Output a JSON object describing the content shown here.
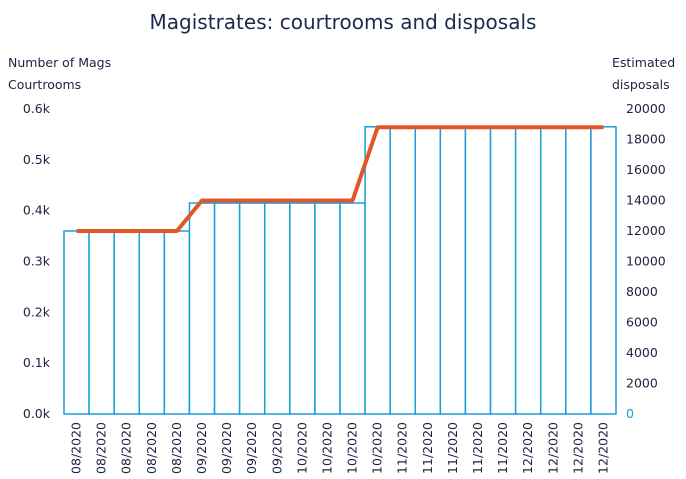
{
  "chart_data": {
    "type": "bar_line",
    "title": "Magistrates: courtrooms and disposals",
    "y_label": [
      "Number of Mags",
      "Courtrooms"
    ],
    "y2_label": [
      "Estimated",
      "disposals"
    ],
    "categories": [
      "08/2020",
      "08/2020",
      "08/2020",
      "08/2020",
      "08/2020",
      "09/2020",
      "09/2020",
      "09/2020",
      "09/2020",
      "10/2020",
      "10/2020",
      "10/2020",
      "10/2020",
      "11/2020",
      "11/2020",
      "11/2020",
      "11/2020",
      "11/2020",
      "12/2020",
      "12/2020",
      "12/2020",
      "12/2020"
    ],
    "series": [
      {
        "name": "Number of Mags Courtrooms",
        "type": "bar",
        "color": "#1a9ed8",
        "values": [
          360,
          360,
          360,
          360,
          360,
          415,
          415,
          415,
          415,
          415,
          415,
          415,
          565,
          565,
          565,
          565,
          565,
          565,
          565,
          565,
          565,
          565
        ]
      },
      {
        "name": "Estimated disposals",
        "type": "line",
        "axis": "y2",
        "color": "#e0582a",
        "values": [
          12000,
          12000,
          12000,
          12000,
          12000,
          14000,
          14000,
          14000,
          14000,
          14000,
          14000,
          14000,
          18800,
          18800,
          18800,
          18800,
          18800,
          18800,
          18800,
          18800,
          18800,
          18800
        ]
      }
    ],
    "ylim": [
      0,
      600
    ],
    "yticks": [
      {
        "value": 0,
        "label": "0.0k"
      },
      {
        "value": 100,
        "label": "0.1k"
      },
      {
        "value": 200,
        "label": "0.2k"
      },
      {
        "value": 300,
        "label": "0.3k"
      },
      {
        "value": 400,
        "label": "0.4k"
      },
      {
        "value": 500,
        "label": "0.5k"
      },
      {
        "value": 600,
        "label": "0.6k"
      }
    ],
    "y2lim": [
      0,
      20000
    ],
    "y2ticks": [
      0,
      2000,
      4000,
      6000,
      8000,
      10000,
      12000,
      14000,
      16000,
      18000,
      20000
    ]
  }
}
